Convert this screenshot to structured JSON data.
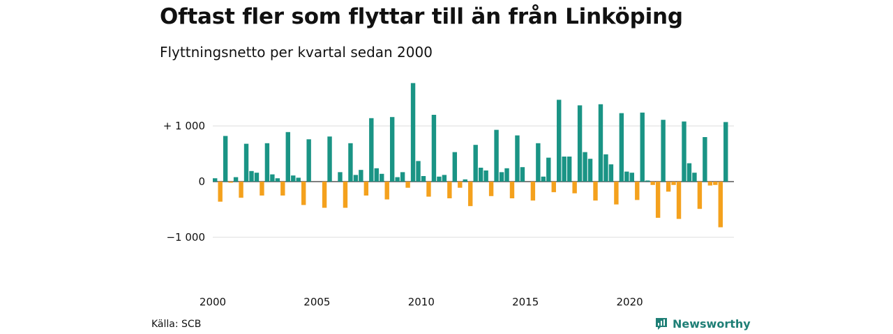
{
  "header": {
    "title": "Oftast fler som flyttar till än från Linköping",
    "subtitle": "Flyttningsnetto per kvartal sedan 2000"
  },
  "footer": {
    "source": "Källa: SCB",
    "brand": "Newsworthy",
    "brand_icon": "newsworthy-logo-icon"
  },
  "colors": {
    "positive": "#1a9485",
    "negative": "#f4a11d",
    "brand": "#1f7f76"
  },
  "chart_data": {
    "type": "bar",
    "title": "Oftast fler som flyttar till än från Linköping",
    "subtitle": "Flyttningsnetto per kvartal sedan 2000",
    "xlabel": "",
    "ylabel": "",
    "grid": true,
    "ylim": [
      -1000,
      1750
    ],
    "y_ticks": [
      {
        "value": 1000,
        "label": "+ 1 000"
      },
      {
        "value": 0,
        "label": "0"
      },
      {
        "value": -1000,
        "label": "−1 000"
      }
    ],
    "x_ticks": [
      {
        "year": 2000,
        "label": "2000"
      },
      {
        "year": 2005,
        "label": "2005"
      },
      {
        "year": 2010,
        "label": "2010"
      },
      {
        "year": 2015,
        "label": "2015"
      },
      {
        "year": 2020,
        "label": "2020"
      }
    ],
    "categories": [
      "2000 Q1",
      "2000 Q2",
      "2000 Q3",
      "2000 Q4",
      "2001 Q1",
      "2001 Q2",
      "2001 Q3",
      "2001 Q4",
      "2002 Q1",
      "2002 Q2",
      "2002 Q3",
      "2002 Q4",
      "2003 Q1",
      "2003 Q2",
      "2003 Q3",
      "2003 Q4",
      "2004 Q1",
      "2004 Q2",
      "2004 Q3",
      "2004 Q4",
      "2005 Q1",
      "2005 Q2",
      "2005 Q3",
      "2005 Q4",
      "2006 Q1",
      "2006 Q2",
      "2006 Q3",
      "2006 Q4",
      "2007 Q1",
      "2007 Q2",
      "2007 Q3",
      "2007 Q4",
      "2008 Q1",
      "2008 Q2",
      "2008 Q3",
      "2008 Q4",
      "2009 Q1",
      "2009 Q2",
      "2009 Q3",
      "2009 Q4",
      "2010 Q1",
      "2010 Q2",
      "2010 Q3",
      "2010 Q4",
      "2011 Q1",
      "2011 Q2",
      "2011 Q3",
      "2011 Q4",
      "2012 Q1",
      "2012 Q2",
      "2012 Q3",
      "2012 Q4",
      "2013 Q1",
      "2013 Q2",
      "2013 Q3",
      "2013 Q4",
      "2014 Q1",
      "2014 Q2",
      "2014 Q3",
      "2014 Q4",
      "2015 Q1",
      "2015 Q2",
      "2015 Q3",
      "2015 Q4",
      "2016 Q1",
      "2016 Q2",
      "2016 Q3",
      "2016 Q4",
      "2017 Q1",
      "2017 Q2",
      "2017 Q3",
      "2017 Q4",
      "2018 Q1",
      "2018 Q2",
      "2018 Q3",
      "2018 Q4",
      "2019 Q1",
      "2019 Q2",
      "2019 Q3",
      "2019 Q4",
      "2020 Q1",
      "2020 Q2",
      "2020 Q3",
      "2020 Q4",
      "2021 Q1",
      "2021 Q2",
      "2021 Q3",
      "2021 Q4",
      "2022 Q1",
      "2022 Q2",
      "2022 Q3",
      "2022 Q4",
      "2023 Q1",
      "2023 Q2",
      "2023 Q3",
      "2023 Q4",
      "2024 Q1",
      "2024 Q2",
      "2024 Q3",
      "2024 Q4"
    ],
    "values": [
      60,
      -360,
      820,
      -20,
      80,
      -290,
      680,
      190,
      160,
      -250,
      690,
      130,
      60,
      -250,
      890,
      110,
      70,
      -420,
      760,
      0,
      0,
      -470,
      810,
      0,
      170,
      -470,
      690,
      120,
      210,
      -250,
      1140,
      240,
      140,
      -320,
      1160,
      80,
      170,
      -110,
      1770,
      370,
      100,
      -270,
      1200,
      90,
      120,
      -300,
      530,
      -110,
      40,
      -440,
      660,
      250,
      200,
      -260,
      930,
      170,
      240,
      -300,
      830,
      260,
      0,
      -340,
      690,
      90,
      430,
      -190,
      1470,
      450,
      450,
      -210,
      1370,
      530,
      410,
      -340,
      1390,
      490,
      310,
      -410,
      1230,
      180,
      160,
      -330,
      1240,
      20,
      -60,
      -650,
      1110,
      -180,
      -60,
      -670,
      1080,
      330,
      160,
      -490,
      800,
      -70,
      -60,
      -820,
      1070,
      0
    ]
  }
}
